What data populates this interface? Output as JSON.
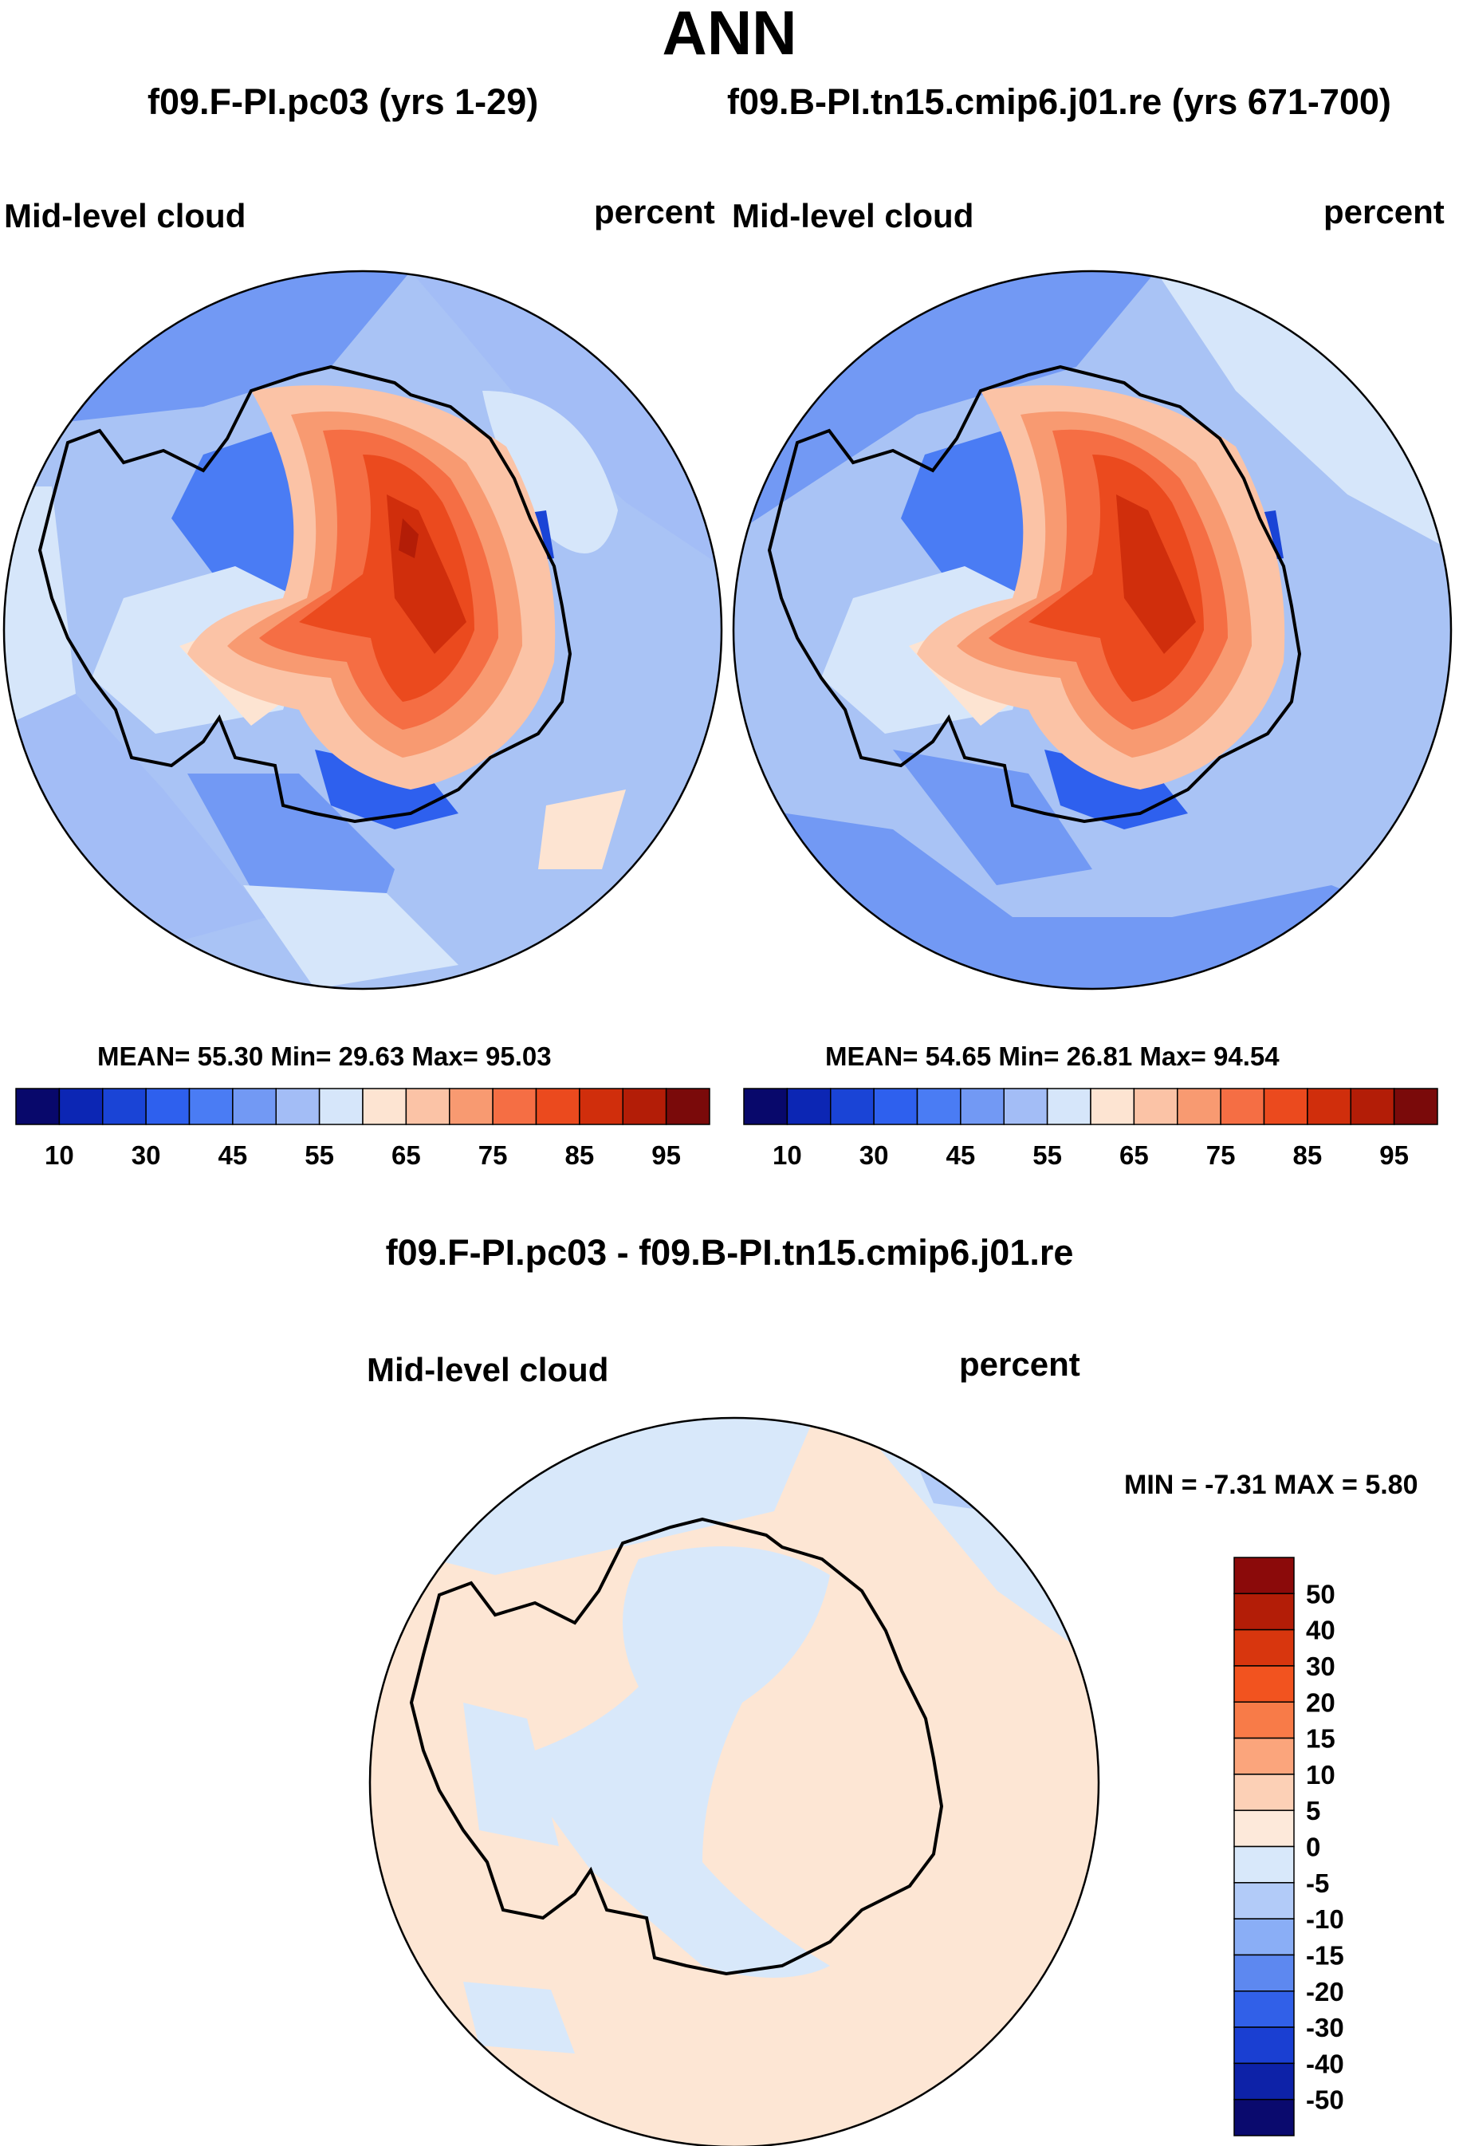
{
  "figure_title": "ANN",
  "panels": [
    {
      "title": "f09.F-PI.pc03 (yrs 1-29)",
      "variable": "Mid-level cloud",
      "units": "percent",
      "stats": "MEAN=  55.30  Min=  29.63  Max=  95.03",
      "colorbar_labels": [
        "10",
        "30",
        "45",
        "55",
        "65",
        "75",
        "85",
        "95"
      ]
    },
    {
      "title": "f09.B-PI.tn15.cmip6.j01.re (yrs 671-700)",
      "variable": "Mid-level cloud",
      "units": "percent",
      "stats": "MEAN=  54.65  Min=  26.81  Max=  94.54",
      "colorbar_labels": [
        "10",
        "30",
        "45",
        "55",
        "65",
        "75",
        "85",
        "95"
      ]
    },
    {
      "title": "f09.F-PI.pc03 - f09.B-PI.tn15.cmip6.j01.re",
      "variable": "Mid-level cloud",
      "units": "percent",
      "stats": "MIN =  -7.31  MAX =   5.80",
      "colorbar_labels": [
        "50",
        "40",
        "30",
        "20",
        "15",
        "10",
        "5",
        "0",
        "-5",
        "-10",
        "-15",
        "-20",
        "-30",
        "-40",
        "-50"
      ]
    }
  ],
  "colors": {
    "abs_scale": [
      "#08086b",
      "#0c26b4",
      "#1a44d6",
      "#2e60ee",
      "#4a7cf4",
      "#7299f4",
      "#a3bdf6",
      "#d6e6fa",
      "#fde4d2",
      "#fbc3a6",
      "#f89a71",
      "#f56e44",
      "#eb4a1e",
      "#d02e0c",
      "#b31d07",
      "#7a0a0a"
    ],
    "diff_scale": [
      "#8b0a0a",
      "#b31d07",
      "#d8360e",
      "#f2531f",
      "#f87b48",
      "#fba57c",
      "#fcd0b6",
      "#fde9da",
      "#d8e8fa",
      "#b2cbf8",
      "#8aaef6",
      "#5d88f0",
      "#3160e8",
      "#1a3fd2",
      "#0d22a8",
      "#0a0a6e"
    ],
    "ocean_abs": "#a9c3f5",
    "ocean_diff": "#fde6d4"
  }
}
